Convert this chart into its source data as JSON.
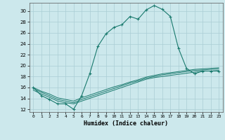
{
  "xlabel": "Humidex (Indice chaleur)",
  "ylabel": "",
  "bg_color": "#cce8ec",
  "grid_color": "#aacdd4",
  "line_color": "#1a7a6e",
  "xlim": [
    -0.5,
    23.5
  ],
  "ylim": [
    11.5,
    31.5
  ],
  "xticks": [
    0,
    1,
    2,
    3,
    4,
    5,
    6,
    7,
    8,
    9,
    10,
    11,
    12,
    13,
    14,
    15,
    16,
    17,
    18,
    19,
    20,
    21,
    22,
    23
  ],
  "yticks": [
    12,
    14,
    16,
    18,
    20,
    22,
    24,
    26,
    28,
    30
  ],
  "series": [
    {
      "x": [
        0,
        1,
        2,
        3,
        4,
        5,
        6,
        7,
        8,
        9,
        10,
        11,
        12,
        13,
        14,
        15,
        16,
        17,
        18,
        19,
        20,
        21,
        22,
        23
      ],
      "y": [
        16.0,
        14.5,
        13.8,
        13.0,
        13.0,
        12.0,
        14.5,
        18.5,
        23.5,
        25.8,
        27.0,
        27.5,
        29.0,
        28.5,
        30.2,
        31.0,
        30.3,
        29.0,
        23.2,
        19.5,
        18.5,
        19.0,
        19.0,
        19.0
      ],
      "marker": true
    },
    {
      "x": [
        0,
        1,
        2,
        3,
        4,
        5,
        6,
        7,
        8,
        9,
        10,
        11,
        12,
        13,
        14,
        15,
        16,
        17,
        18,
        19,
        20,
        21,
        22,
        23
      ],
      "y": [
        15.5,
        14.8,
        14.2,
        13.5,
        13.2,
        13.0,
        13.5,
        14.0,
        14.5,
        15.0,
        15.5,
        16.0,
        16.5,
        17.0,
        17.5,
        17.8,
        18.0,
        18.2,
        18.4,
        18.6,
        18.8,
        19.0,
        19.0,
        19.1
      ],
      "marker": false
    },
    {
      "x": [
        0,
        1,
        2,
        3,
        4,
        5,
        6,
        7,
        8,
        9,
        10,
        11,
        12,
        13,
        14,
        15,
        16,
        17,
        18,
        19,
        20,
        21,
        22,
        23
      ],
      "y": [
        15.8,
        15.1,
        14.5,
        13.8,
        13.5,
        13.2,
        13.8,
        14.3,
        14.8,
        15.3,
        15.8,
        16.3,
        16.8,
        17.2,
        17.7,
        18.0,
        18.3,
        18.5,
        18.7,
        18.9,
        19.1,
        19.2,
        19.3,
        19.4
      ],
      "marker": false
    },
    {
      "x": [
        0,
        1,
        2,
        3,
        4,
        5,
        6,
        7,
        8,
        9,
        10,
        11,
        12,
        13,
        14,
        15,
        16,
        17,
        18,
        19,
        20,
        21,
        22,
        23
      ],
      "y": [
        16.0,
        15.3,
        14.8,
        14.1,
        13.8,
        13.5,
        14.1,
        14.6,
        15.1,
        15.6,
        16.1,
        16.5,
        17.0,
        17.4,
        17.9,
        18.2,
        18.5,
        18.7,
        18.9,
        19.1,
        19.3,
        19.4,
        19.5,
        19.6
      ],
      "marker": false
    }
  ]
}
